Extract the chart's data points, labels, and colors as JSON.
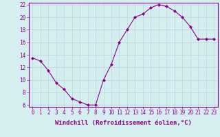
{
  "x": [
    0,
    1,
    2,
    3,
    4,
    5,
    6,
    7,
    8,
    9,
    10,
    11,
    12,
    13,
    14,
    15,
    16,
    17,
    18,
    19,
    20,
    21,
    22,
    23
  ],
  "y": [
    13.5,
    13.0,
    11.5,
    9.5,
    8.5,
    7.0,
    6.5,
    6.0,
    6.0,
    10.0,
    12.5,
    16.0,
    18.0,
    20.0,
    20.5,
    21.5,
    22.0,
    21.7,
    21.0,
    20.0,
    18.5,
    16.5,
    16.5,
    16.5
  ],
  "line_color": "#8b008b",
  "marker": "D",
  "marker_size": 2,
  "background_color": "#d5eef0",
  "grid_color": "#b8d8dc",
  "xlabel": "Windchill (Refroidissement éolien,°C)",
  "ylim": [
    6,
    22
  ],
  "xlim": [
    -0.5,
    23.5
  ],
  "yticks": [
    6,
    8,
    10,
    12,
    14,
    16,
    18,
    20,
    22
  ],
  "xticks": [
    0,
    1,
    2,
    3,
    4,
    5,
    6,
    7,
    8,
    9,
    10,
    11,
    12,
    13,
    14,
    15,
    16,
    17,
    18,
    19,
    20,
    21,
    22,
    23
  ],
  "tick_color": "#8b008b",
  "label_color": "#8b008b",
  "axis_color": "#8b008b",
  "tick_fontsize": 5.5,
  "xlabel_fontsize": 6.5
}
